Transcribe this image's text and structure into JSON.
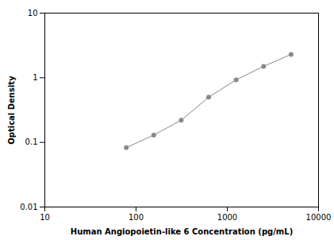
{
  "chart_data": {
    "type": "line",
    "x": [
      78.125,
      156.25,
      312.5,
      625,
      1250,
      2500,
      5000
    ],
    "values": [
      0.083,
      0.13,
      0.22,
      0.5,
      0.93,
      1.5,
      2.3
    ],
    "color": "#888888",
    "marker": "circle",
    "xlabel": "Human Angiopoietin-like 6 Concentration (pg/mL)",
    "ylabel": "Optical Density",
    "log": true,
    "xlim": [
      10,
      10000
    ],
    "ylim": [
      0.01,
      10
    ],
    "xticks": [
      10,
      100,
      1000,
      10000
    ],
    "yticks": [
      0.01,
      0.1,
      1,
      10
    ],
    "grid": false
  }
}
